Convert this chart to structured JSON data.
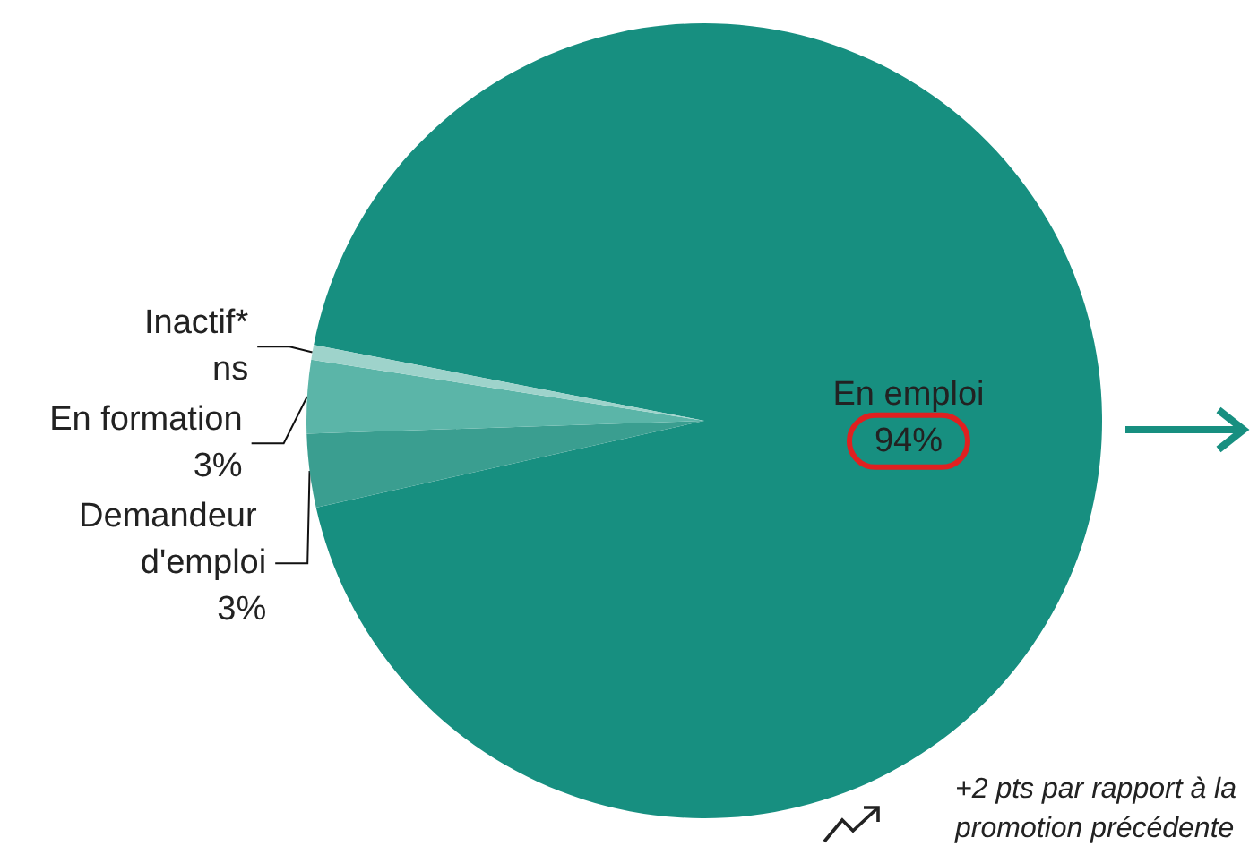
{
  "chart_data": {
    "type": "pie",
    "categories": [
      "En emploi",
      "Demandeur d'emploi",
      "En formation",
      "Inactif*"
    ],
    "values": [
      94,
      3,
      3,
      0.6
    ],
    "value_labels": [
      "94%",
      "3%",
      "3%",
      "ns"
    ],
    "colors": [
      "#178f80",
      "#3a9e90",
      "#5bb5a8",
      "#9ed3cb"
    ],
    "legend": false,
    "annotations": [
      "+2 pts par rapport à la promotion précédente"
    ]
  }
}
